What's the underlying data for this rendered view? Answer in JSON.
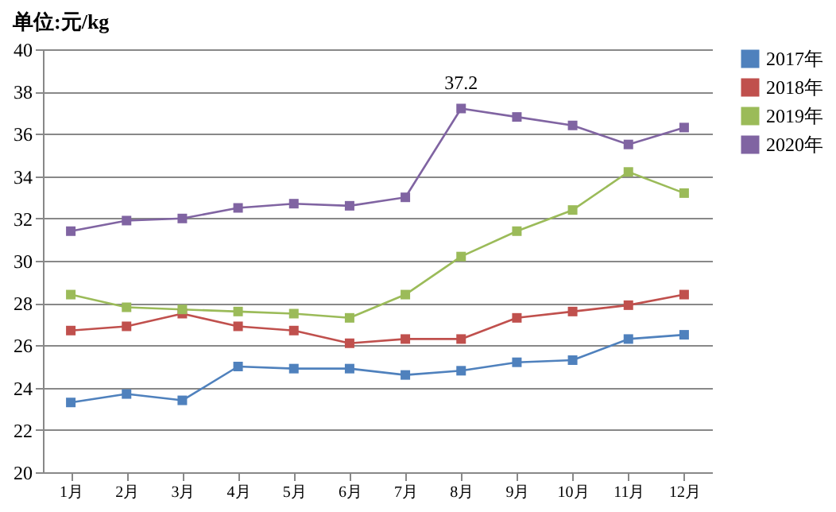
{
  "chart_data": {
    "type": "line",
    "title": "单位:元/kg",
    "categories": [
      "1月",
      "2月",
      "3月",
      "4月",
      "5月",
      "6月",
      "7月",
      "8月",
      "9月",
      "10月",
      "11月",
      "12月"
    ],
    "series": [
      {
        "name": "2017年",
        "color": "#4f81bd",
        "values": [
          23.3,
          23.7,
          23.4,
          25.0,
          24.9,
          24.9,
          24.6,
          24.8,
          25.2,
          25.3,
          26.3,
          26.5
        ]
      },
      {
        "name": "2018年",
        "color": "#c0504d",
        "values": [
          26.7,
          26.9,
          27.5,
          26.9,
          26.7,
          26.1,
          26.3,
          26.3,
          27.3,
          27.6,
          27.9,
          28.4
        ]
      },
      {
        "name": "2019年",
        "color": "#9bbb59",
        "values": [
          28.4,
          27.8,
          27.7,
          27.6,
          27.5,
          27.3,
          28.4,
          30.2,
          31.4,
          32.4,
          34.2,
          33.2
        ]
      },
      {
        "name": "2020年",
        "color": "#8064a2",
        "values": [
          31.4,
          31.9,
          32.0,
          32.5,
          32.7,
          32.6,
          33.0,
          37.2,
          36.8,
          36.4,
          35.5,
          36.3
        ]
      }
    ],
    "ylim": [
      20,
      40
    ],
    "yticks": [
      20,
      22,
      24,
      26,
      28,
      30,
      32,
      34,
      36,
      38,
      40
    ],
    "grid": "y",
    "legend": "right",
    "marker": "square",
    "line_style": "solid",
    "annotations": [
      {
        "text": "37.2",
        "x": "8月",
        "y": 37.2
      }
    ]
  }
}
